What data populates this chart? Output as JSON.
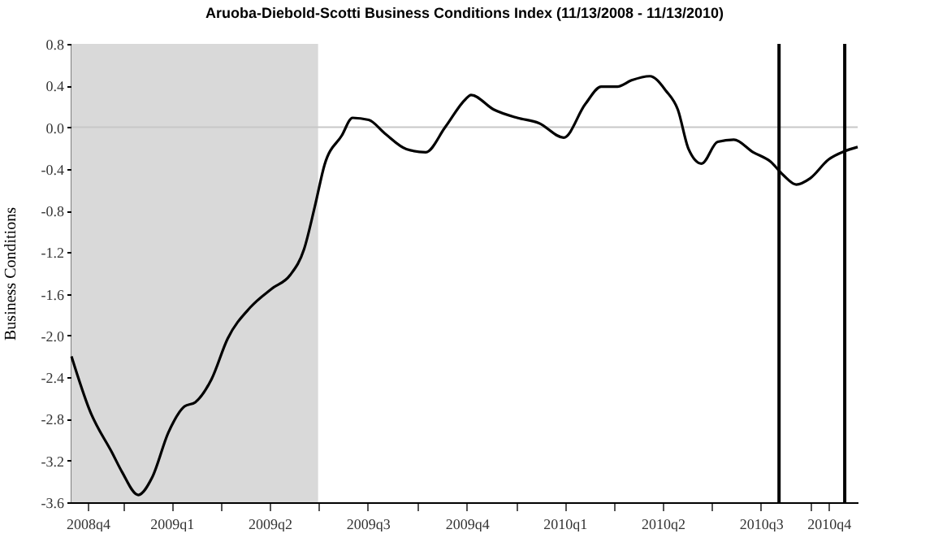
{
  "chart_data": {
    "type": "line",
    "title": "Aruoba-Diebold-Scotti Business Conditions Index (11/13/2008 - 11/13/2010)",
    "ylabel": "Business Conditions",
    "x": [
      "2008-11-13",
      "2008-11-30",
      "2008-12-21",
      "2008-12-30",
      "2009-01-14",
      "2009-01-27",
      "2009-02-11",
      "2009-02-26",
      "2009-03-08",
      "2009-03-23",
      "2009-04-07",
      "2009-04-28",
      "2009-05-18",
      "2009-06-04",
      "2009-06-17",
      "2009-06-27",
      "2009-07-06",
      "2009-07-22",
      "2009-08-01",
      "2009-08-16",
      "2009-08-31",
      "2009-09-20",
      "2009-10-08",
      "2009-10-26",
      "2009-11-14",
      "2009-11-19",
      "2009-12-10",
      "2010-01-01",
      "2010-01-21",
      "2010-02-13",
      "2010-03-05",
      "2010-03-20",
      "2010-04-04",
      "2010-04-17",
      "2010-05-04",
      "2010-05-19",
      "2010-05-30",
      "2010-06-09",
      "2010-06-21",
      "2010-07-06",
      "2010-07-21",
      "2010-08-08",
      "2010-08-24",
      "2010-09-05",
      "2010-09-17",
      "2010-09-30",
      "2010-10-17",
      "2010-11-01",
      "2010-11-13"
    ],
    "series": [
      {
        "color": "#000000",
        "values": [
          -2.2,
          -2.72,
          -3.13,
          -3.31,
          -3.53,
          -3.36,
          -2.93,
          -2.68,
          -2.64,
          -2.42,
          -2.03,
          -1.73,
          -1.55,
          -1.42,
          -1.17,
          -0.76,
          -0.36,
          -0.08,
          0.09,
          0.07,
          -0.06,
          -0.21,
          -0.24,
          0.0,
          0.27,
          0.31,
          0.17,
          0.09,
          0.04,
          -0.1,
          0.22,
          0.39,
          0.39,
          0.45,
          0.49,
          0.35,
          0.17,
          -0.21,
          -0.35,
          -0.14,
          -0.12,
          -0.24,
          -0.33,
          -0.46,
          -0.55,
          -0.49,
          -0.31,
          -0.23,
          -0.19
        ]
      }
    ],
    "xlim": [
      "2008-11-13",
      "2010-11-13"
    ],
    "xticks": [
      {
        "value": "2008-11-28",
        "label": "2008q4"
      },
      {
        "value": "2009-01-01",
        "label": null
      },
      {
        "value": "2009-02-14",
        "label": "2009q1"
      },
      {
        "value": "2009-04-01",
        "label": null
      },
      {
        "value": "2009-05-16",
        "label": "2009q2"
      },
      {
        "value": "2009-07-01",
        "label": null
      },
      {
        "value": "2009-08-15",
        "label": "2009q3"
      },
      {
        "value": "2009-10-01",
        "label": null
      },
      {
        "value": "2009-11-15",
        "label": "2009q4"
      },
      {
        "value": "2010-01-01",
        "label": null
      },
      {
        "value": "2010-02-14",
        "label": "2010q1"
      },
      {
        "value": "2010-04-01",
        "label": null
      },
      {
        "value": "2010-05-16",
        "label": "2010q2"
      },
      {
        "value": "2010-07-01",
        "label": null
      },
      {
        "value": "2010-08-15",
        "label": "2010q3"
      },
      {
        "value": "2010-10-01",
        "label": null
      },
      {
        "value": "2010-10-17",
        "label": "2010q4"
      }
    ],
    "ylim": [
      -3.6,
      0.8
    ],
    "yticks": [
      {
        "value": 0.8,
        "label": "0.8"
      },
      {
        "value": 0.4,
        "label": "0.4"
      },
      {
        "value": 0,
        "label": "0.0"
      },
      {
        "value": -0.4,
        "label": "-0.4"
      },
      {
        "value": -0.8,
        "label": "-0.8"
      },
      {
        "value": -1.2,
        "label": "-1.2"
      },
      {
        "value": -1.6,
        "label": "-1.6"
      },
      {
        "value": -2.0,
        "label": "-2.0"
      },
      {
        "value": -2.4,
        "label": "-2.4"
      },
      {
        "value": -2.8,
        "label": "-2.8"
      },
      {
        "value": -3.2,
        "label": "-3.2"
      },
      {
        "value": -3.6,
        "label": "-3.6"
      }
    ],
    "ref_lines": [
      {
        "axis": "y",
        "value": 0,
        "color": "#c8c8c8"
      },
      {
        "axis": "x",
        "value": "2010-09-01",
        "color": "#000000"
      },
      {
        "axis": "x",
        "value": "2010-11-01",
        "color": "#000000"
      }
    ],
    "bands": [
      {
        "axis": "x",
        "from": "2008-11-13",
        "to": "2009-06-30",
        "color": "#d9d9d9"
      }
    ],
    "grid": false,
    "legend": false,
    "marker": "none",
    "line_style": "solid"
  }
}
